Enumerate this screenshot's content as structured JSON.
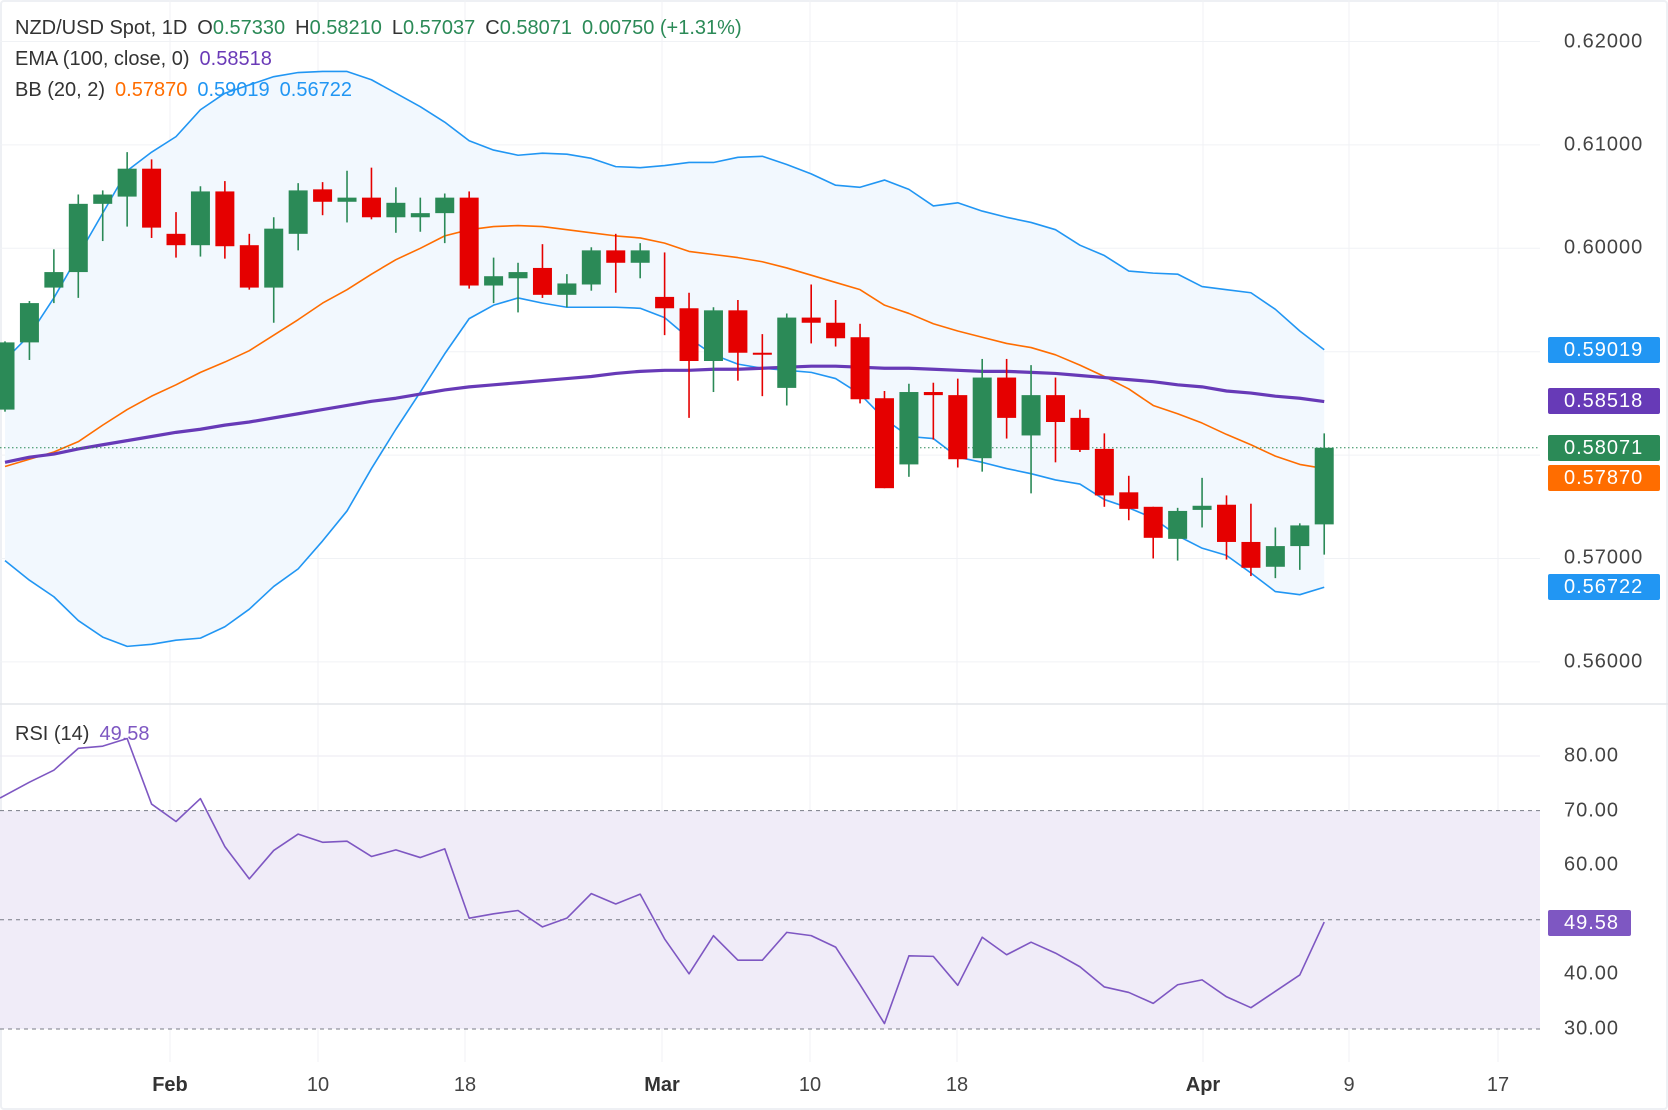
{
  "header": {
    "symbol": "NZD/USD Spot, 1D",
    "o_label": "O",
    "open": "0.57330",
    "h_label": "H",
    "high": "0.58210",
    "l_label": "L",
    "low": "0.57037",
    "c_label": "C",
    "close": "0.58071",
    "change": "0.00750 (+1.31%)"
  },
  "ema_legend": {
    "label": "EMA (100, close, 0)",
    "value": "0.58518"
  },
  "bb_legend": {
    "label": "BB (20, 2)",
    "basis": "0.57870",
    "upper": "0.59019",
    "lower": "0.56722"
  },
  "rsi_legend": {
    "label": "RSI (14)",
    "value": "49.58"
  },
  "badges": {
    "bb_upper": "0.59019",
    "ema": "0.58518",
    "close": "0.58071",
    "bb_basis": "0.57870",
    "bb_lower": "0.56722",
    "rsi": "49.58"
  },
  "colors": {
    "up": "#2b8a57",
    "down": "#e50000",
    "bb_band": "#2196f3",
    "bb_basis": "#ff6d00",
    "bb_fill": "#f2f8fe",
    "ema": "#673ab7",
    "rsi": "#7e57c2",
    "rsi_fill": "#f0ecf8"
  },
  "chart_data": [
    {
      "type": "candlestick",
      "title": "NZD/USD Spot, 1D",
      "ylim": [
        0.555,
        0.624
      ],
      "y_ticks": [
        "0.62000",
        "0.61000",
        "0.60000",
        "0.57000",
        "0.56000"
      ],
      "y_tick_values": [
        0.62,
        0.61,
        0.6,
        0.57,
        0.56
      ],
      "x_ticks": [
        "Feb",
        "10",
        "18",
        "Mar",
        "10",
        "18",
        "Apr",
        "9",
        "17"
      ],
      "grid": true,
      "ohlc": [
        [
          0.5844,
          0.591,
          0.5842,
          0.5909
        ],
        [
          0.5909,
          0.5949,
          0.5892,
          0.5947
        ],
        [
          0.5962,
          0.5999,
          0.5947,
          0.5977
        ],
        [
          0.5977,
          0.6052,
          0.5952,
          0.6043
        ],
        [
          0.6043,
          0.6056,
          0.6007,
          0.6052
        ],
        [
          0.605,
          0.6093,
          0.6021,
          0.6077
        ],
        [
          0.6077,
          0.6086,
          0.601,
          0.602
        ],
        [
          0.6014,
          0.6035,
          0.5991,
          0.6003
        ],
        [
          0.6003,
          0.606,
          0.5992,
          0.6055
        ],
        [
          0.6055,
          0.6065,
          0.599,
          0.6002
        ],
        [
          0.6003,
          0.6014,
          0.596,
          0.5962
        ],
        [
          0.5962,
          0.603,
          0.5928,
          0.6019
        ],
        [
          0.6014,
          0.6063,
          0.5998,
          0.6056
        ],
        [
          0.6057,
          0.6064,
          0.6032,
          0.6045
        ],
        [
          0.6045,
          0.6075,
          0.6025,
          0.6049
        ],
        [
          0.6049,
          0.6078,
          0.6028,
          0.603
        ],
        [
          0.603,
          0.6059,
          0.6015,
          0.6044
        ],
        [
          0.603,
          0.6049,
          0.6016,
          0.6034
        ],
        [
          0.6034,
          0.6053,
          0.6005,
          0.6049
        ],
        [
          0.6049,
          0.6055,
          0.5961,
          0.5964
        ],
        [
          0.5964,
          0.5991,
          0.5947,
          0.5973
        ],
        [
          0.5971,
          0.5986,
          0.5938,
          0.5977
        ],
        [
          0.5981,
          0.6004,
          0.5952,
          0.5955
        ],
        [
          0.5955,
          0.5975,
          0.5943,
          0.5966
        ],
        [
          0.5965,
          0.6001,
          0.5959,
          0.5998
        ],
        [
          0.5998,
          0.6014,
          0.5957,
          0.5986
        ],
        [
          0.5986,
          0.6005,
          0.5971,
          0.5998
        ],
        [
          0.5953,
          0.5996,
          0.5916,
          0.5942
        ],
        [
          0.5942,
          0.5957,
          0.5836,
          0.5891
        ],
        [
          0.5891,
          0.5943,
          0.5861,
          0.594
        ],
        [
          0.594,
          0.595,
          0.5872,
          0.5899
        ],
        [
          0.5899,
          0.5917,
          0.5857,
          0.5898
        ],
        [
          0.5865,
          0.5937,
          0.5848,
          0.5933
        ],
        [
          0.5933,
          0.5965,
          0.5908,
          0.5928
        ],
        [
          0.5928,
          0.595,
          0.5905,
          0.5913
        ],
        [
          0.5914,
          0.5927,
          0.585,
          0.5854
        ],
        [
          0.5855,
          0.5862,
          0.5768,
          0.5768
        ],
        [
          0.5791,
          0.5869,
          0.5779,
          0.5861
        ],
        [
          0.5861,
          0.587,
          0.5815,
          0.5858
        ],
        [
          0.5858,
          0.5874,
          0.5788,
          0.5796
        ],
        [
          0.5797,
          0.5893,
          0.5784,
          0.5875
        ],
        [
          0.5875,
          0.5893,
          0.5816,
          0.5836
        ],
        [
          0.5819,
          0.5887,
          0.5763,
          0.5858
        ],
        [
          0.5858,
          0.5875,
          0.5793,
          0.5832
        ],
        [
          0.5836,
          0.5844,
          0.5803,
          0.5805
        ],
        [
          0.5806,
          0.5821,
          0.575,
          0.5761
        ],
        [
          0.5764,
          0.578,
          0.5737,
          0.5748
        ],
        [
          0.575,
          0.575,
          0.57,
          0.572
        ],
        [
          0.5719,
          0.5749,
          0.5698,
          0.5746
        ],
        [
          0.5747,
          0.5778,
          0.573,
          0.5751
        ],
        [
          0.5752,
          0.5761,
          0.5699,
          0.5716
        ],
        [
          0.5716,
          0.5753,
          0.5683,
          0.5691
        ],
        [
          0.5692,
          0.573,
          0.5681,
          0.5712
        ],
        [
          0.5712,
          0.5734,
          0.5689,
          0.5732
        ],
        [
          0.5733,
          0.5821,
          0.57037,
          0.58071
        ]
      ],
      "series": [
        {
          "name": "EMA (100, close, 0)",
          "type": "line",
          "values": [
            0.5793,
            0.5798,
            0.5801,
            0.5806,
            0.581,
            0.5814,
            0.5818,
            0.5822,
            0.5825,
            0.5829,
            0.5832,
            0.5836,
            0.584,
            0.5844,
            0.5848,
            0.5852,
            0.5855,
            0.5859,
            0.5863,
            0.5866,
            0.5868,
            0.587,
            0.5872,
            0.5874,
            0.5876,
            0.5879,
            0.5881,
            0.5882,
            0.5882,
            0.5883,
            0.5883,
            0.5884,
            0.5885,
            0.5886,
            0.5886,
            0.5885,
            0.5884,
            0.5884,
            0.5883,
            0.5882,
            0.5881,
            0.5881,
            0.588,
            0.5879,
            0.5877,
            0.5875,
            0.5873,
            0.5871,
            0.5868,
            0.5866,
            0.5862,
            0.586,
            0.5857,
            0.5855,
            0.58518
          ]
        },
        {
          "name": "BB upper",
          "type": "line",
          "values": [
            0.5892,
            0.5916,
            0.5952,
            0.5993,
            0.6034,
            0.6075,
            0.6093,
            0.6108,
            0.6134,
            0.615,
            0.6158,
            0.6166,
            0.617,
            0.6171,
            0.6171,
            0.6163,
            0.615,
            0.6137,
            0.6122,
            0.6104,
            0.6095,
            0.609,
            0.6092,
            0.6091,
            0.6087,
            0.6079,
            0.6078,
            0.608,
            0.6083,
            0.6083,
            0.6088,
            0.6089,
            0.6081,
            0.6072,
            0.6061,
            0.6059,
            0.6066,
            0.6057,
            0.6041,
            0.6044,
            0.6036,
            0.603,
            0.6025,
            0.6018,
            0.6003,
            0.5993,
            0.5978,
            0.5976,
            0.5975,
            0.5963,
            0.596,
            0.5957,
            0.5941,
            0.592,
            0.59019
          ]
        },
        {
          "name": "BB basis",
          "type": "line",
          "values": [
            0.5789,
            0.5796,
            0.5803,
            0.5813,
            0.5829,
            0.5844,
            0.5857,
            0.5868,
            0.588,
            0.589,
            0.5901,
            0.5916,
            0.5931,
            0.5947,
            0.596,
            0.5975,
            0.5989,
            0.6,
            0.6012,
            0.6018,
            0.6021,
            0.6022,
            0.6021,
            0.6018,
            0.6015,
            0.6012,
            0.601,
            0.6005,
            0.5997,
            0.5994,
            0.5991,
            0.5987,
            0.5981,
            0.5974,
            0.5967,
            0.596,
            0.5945,
            0.5937,
            0.5927,
            0.592,
            0.5914,
            0.5908,
            0.5904,
            0.5897,
            0.5887,
            0.5876,
            0.5864,
            0.5848,
            0.584,
            0.5831,
            0.582,
            0.581,
            0.5799,
            0.5791,
            0.5787
          ]
        },
        {
          "name": "BB lower",
          "type": "line",
          "values": [
            0.5698,
            0.5679,
            0.5663,
            0.564,
            0.5624,
            0.5615,
            0.5617,
            0.5621,
            0.5623,
            0.5634,
            0.5651,
            0.5673,
            0.569,
            0.5717,
            0.5746,
            0.5787,
            0.5825,
            0.5861,
            0.5898,
            0.5932,
            0.5945,
            0.5952,
            0.5947,
            0.5943,
            0.5943,
            0.5943,
            0.5942,
            0.5933,
            0.5913,
            0.5897,
            0.5888,
            0.5884,
            0.5882,
            0.588,
            0.5874,
            0.5859,
            0.5835,
            0.5818,
            0.5816,
            0.5798,
            0.5793,
            0.5787,
            0.5782,
            0.5776,
            0.5772,
            0.5757,
            0.5749,
            0.5739,
            0.5722,
            0.571,
            0.5703,
            0.5686,
            0.5668,
            0.5665,
            0.56722
          ]
        }
      ]
    },
    {
      "type": "line",
      "title": "RSI (14)",
      "ylim": [
        25,
        88
      ],
      "y_ticks": [
        "80.00",
        "70.00",
        "60.00",
        "40.00",
        "30.00"
      ],
      "y_tick_values": [
        80,
        70,
        60,
        40,
        30
      ],
      "bands": [
        30,
        70
      ],
      "reference_lines": [
        30,
        50,
        70
      ],
      "series": [
        {
          "name": "RSI (14)",
          "values": [
            72.3,
            75.2,
            77.4,
            81.4,
            81.8,
            83.2,
            71.2,
            68.0,
            72.2,
            63.4,
            57.5,
            62.7,
            65.7,
            64.2,
            64.4,
            61.6,
            62.8,
            61.4,
            63.0,
            50.3,
            51.1,
            51.7,
            48.7,
            50.3,
            54.8,
            52.9,
            54.7,
            46.5,
            40.1,
            47.1,
            42.6,
            42.6,
            47.7,
            47.1,
            45.0,
            38.1,
            31.0,
            43.4,
            43.3,
            38.0,
            46.8,
            43.6,
            45.9,
            43.9,
            41.4,
            37.7,
            36.7,
            34.7,
            38.1,
            39.0,
            35.9,
            33.9,
            36.9,
            39.9,
            49.58
          ]
        }
      ]
    }
  ]
}
